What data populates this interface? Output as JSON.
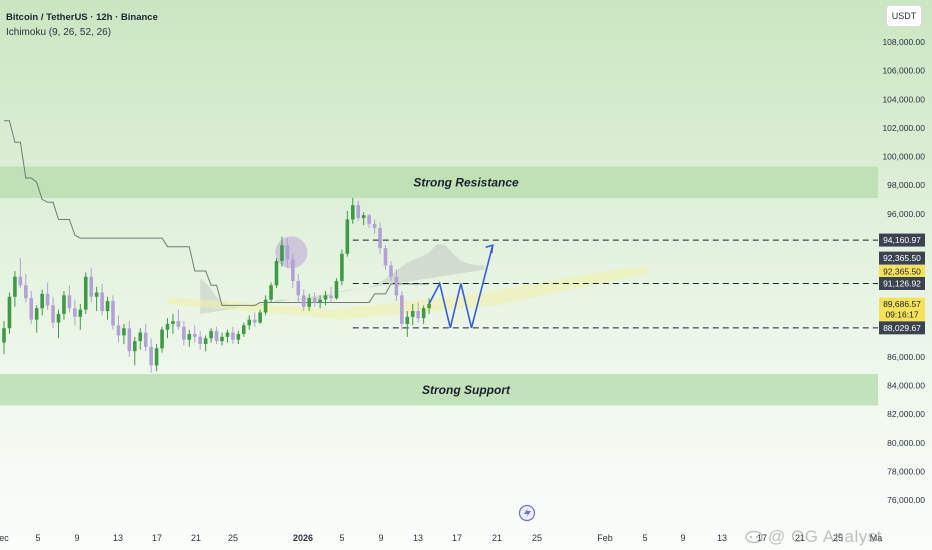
{
  "header": {
    "symbol": "Bitcoin / TetherUS · 12h · Binance",
    "indicator": "Ichimoku (9, 26, 52, 26)"
  },
  "currency_button": "USDT",
  "watermark": "@ OG Analyst",
  "colors": {
    "up": "#3f9a46",
    "down": "#b3a1d6",
    "zone": "#b8deb0",
    "zone_text": "#1c2130",
    "kijun": "#6e7c74",
    "cloud": "#9aa7a3",
    "cloud_yellow": "#f3f0a8",
    "projection": "#3a5bd9",
    "circle": "#b9a4d9"
  },
  "chart_data": {
    "type": "candlestick",
    "title": "Bitcoin / TetherUS · 12h · Binance",
    "ylim": [
      74500,
      110000
    ],
    "y_ticks": [
      "108,000.00",
      "106,000.00",
      "104,000.00",
      "102,000.00",
      "100,000.00",
      "98,000.00",
      "96,000.00",
      "86,000.00",
      "84,000.00",
      "82,000.00",
      "80,000.00",
      "78,000.00",
      "76,000.00"
    ],
    "x_ticks": [
      "ec",
      "5",
      "9",
      "13",
      "17",
      "21",
      "25",
      "2026",
      "5",
      "9",
      "13",
      "17",
      "21",
      "25",
      "Feb",
      "5",
      "9",
      "13",
      "17",
      "21",
      "25",
      "Ma"
    ],
    "zones": [
      {
        "label": "Strong Resistance",
        "low": 97100,
        "high": 99300
      },
      {
        "label": "Strong Support",
        "low": 82600,
        "high": 84800
      }
    ],
    "price_labels": [
      {
        "value": "94,160.97",
        "price": 94160.97,
        "style": "dark"
      },
      {
        "value": "92,365.50",
        "price": 92900,
        "style": "dark"
      },
      {
        "value": "92,365.50",
        "price": 91950,
        "style": "yellow"
      },
      {
        "value": "91,126.92",
        "price": 91126.92,
        "style": "dark"
      },
      {
        "value": "89,686.57",
        "price": 89686.57,
        "style": "yellow"
      },
      {
        "value": "09:16:17",
        "price": 88950,
        "style": "yellow"
      },
      {
        "value": "88,029.67",
        "price": 88029.67,
        "style": "dark"
      }
    ],
    "dashed_levels": [
      94160.97,
      91126.92,
      88029.67
    ],
    "candles": [
      [
        87000,
        88500,
        86200,
        88000
      ],
      [
        88000,
        90500,
        87600,
        90200
      ],
      [
        90200,
        92000,
        89500,
        91600
      ],
      [
        91600,
        92900,
        90800,
        91000
      ],
      [
        91000,
        91800,
        89800,
        90100
      ],
      [
        90100,
        90600,
        88300,
        88600
      ],
      [
        88600,
        89600,
        87700,
        89400
      ],
      [
        89400,
        90700,
        88900,
        90400
      ],
      [
        90400,
        91200,
        89300,
        89600
      ],
      [
        89600,
        90200,
        88000,
        88400
      ],
      [
        88400,
        89300,
        87300,
        89000
      ],
      [
        89000,
        90600,
        88600,
        90300
      ],
      [
        90300,
        91000,
        89100,
        89400
      ],
      [
        89400,
        90000,
        88200,
        88800
      ],
      [
        88800,
        89700,
        87900,
        89300
      ],
      [
        89300,
        91900,
        89000,
        91600
      ],
      [
        91600,
        92200,
        89800,
        90200
      ],
      [
        90200,
        90900,
        89200,
        90500
      ],
      [
        90500,
        91100,
        88900,
        89200
      ],
      [
        89200,
        90200,
        88600,
        89900
      ],
      [
        89900,
        90300,
        87900,
        88200
      ],
      [
        88200,
        88900,
        87000,
        87500
      ],
      [
        87500,
        88300,
        86900,
        88000
      ],
      [
        88000,
        88500,
        86000,
        86400
      ],
      [
        86400,
        87400,
        85400,
        87100
      ],
      [
        87100,
        88000,
        86500,
        87700
      ],
      [
        87700,
        88300,
        86400,
        86700
      ],
      [
        86700,
        87300,
        84900,
        85400
      ],
      [
        85400,
        86900,
        85000,
        86600
      ],
      [
        86600,
        88100,
        86300,
        87900
      ],
      [
        87900,
        88700,
        87300,
        88300
      ],
      [
        88300,
        89000,
        87600,
        88500
      ],
      [
        88500,
        89300,
        87900,
        88100
      ],
      [
        88100,
        88500,
        86800,
        87200
      ],
      [
        87200,
        87900,
        86700,
        87600
      ],
      [
        87600,
        88200,
        87000,
        87400
      ],
      [
        87400,
        87800,
        86500,
        86900
      ],
      [
        86900,
        87500,
        86400,
        87300
      ],
      [
        87300,
        88000,
        87000,
        87800
      ],
      [
        87800,
        88100,
        86900,
        87100
      ],
      [
        87100,
        87700,
        86800,
        87400
      ],
      [
        87400,
        87900,
        87000,
        87700
      ],
      [
        87700,
        88100,
        86900,
        87200
      ],
      [
        87200,
        87800,
        86900,
        87600
      ],
      [
        87600,
        88400,
        87400,
        88200
      ],
      [
        88200,
        88900,
        87900,
        88600
      ],
      [
        88600,
        89100,
        88100,
        88400
      ],
      [
        88400,
        89300,
        88300,
        89100
      ],
      [
        89100,
        90300,
        88900,
        90000
      ],
      [
        90000,
        91200,
        89800,
        91000
      ],
      [
        91000,
        92900,
        90800,
        92700
      ],
      [
        92700,
        94400,
        92300,
        93800
      ],
      [
        93800,
        94300,
        92200,
        92800
      ],
      [
        92800,
        93200,
        90800,
        91300
      ],
      [
        91300,
        91800,
        89800,
        90300
      ],
      [
        90300,
        90700,
        89200,
        89500
      ],
      [
        89500,
        90400,
        89200,
        90100
      ],
      [
        90100,
        90500,
        89500,
        89800
      ],
      [
        89800,
        90300,
        89400,
        90000
      ],
      [
        90000,
        90600,
        89600,
        90300
      ],
      [
        90300,
        90900,
        89800,
        90100
      ],
      [
        90100,
        91500,
        90000,
        91300
      ],
      [
        91300,
        93500,
        91000,
        93200
      ],
      [
        93200,
        96200,
        93000,
        95600
      ],
      [
        95600,
        97100,
        95300,
        96600
      ],
      [
        96600,
        96900,
        95500,
        95700
      ],
      [
        95700,
        96100,
        95200,
        95900
      ],
      [
        95900,
        96000,
        95000,
        95300
      ],
      [
        95300,
        95600,
        94600,
        95000
      ],
      [
        95000,
        95400,
        93200,
        93600
      ],
      [
        93600,
        93800,
        92100,
        92400
      ],
      [
        92400,
        92700,
        91300,
        91600
      ],
      [
        91600,
        92100,
        89900,
        90300
      ],
      [
        90300,
        90600,
        87900,
        88300
      ],
      [
        88300,
        89200,
        87400,
        88800
      ],
      [
        88800,
        89700,
        88200,
        89200
      ],
      [
        89200,
        89800,
        88400,
        88700
      ],
      [
        88700,
        89600,
        88300,
        89400
      ],
      [
        89400,
        90100,
        89000,
        89700
      ]
    ],
    "tenkan_kijun": [
      [
        102500,
        102500,
        101000,
        101000,
        98500,
        98500,
        98200,
        97000,
        96800,
        96800,
        95600,
        95600,
        95600,
        94500,
        94300,
        94300,
        94300,
        94300,
        94300,
        94300,
        94300,
        94300,
        94300,
        94300,
        94300,
        94300,
        94300,
        94300,
        94300,
        94300,
        93700,
        93700,
        93700,
        93700,
        93700,
        92000,
        92000,
        92000,
        91000,
        91000,
        89600,
        89600,
        89600,
        89600,
        89600,
        89600,
        89600,
        89800,
        89800,
        89800,
        89800,
        89800,
        89800,
        89800,
        89800,
        89800,
        89800,
        89800,
        89800,
        89800,
        89800,
        89800,
        89800,
        89800,
        89800,
        89800,
        89800,
        89800,
        90400,
        90400,
        90400,
        91100,
        91100,
        91100,
        91100,
        91100,
        91100,
        91100,
        91100
      ]
    ],
    "projection_path": [
      [
        89700,
        0
      ],
      [
        91126.92,
        2
      ],
      [
        88029.67,
        4
      ],
      [
        91126.92,
        6
      ],
      [
        88029.67,
        8
      ],
      [
        93800,
        12
      ]
    ],
    "highlight_circle": {
      "index": 52,
      "price": 93300
    }
  }
}
